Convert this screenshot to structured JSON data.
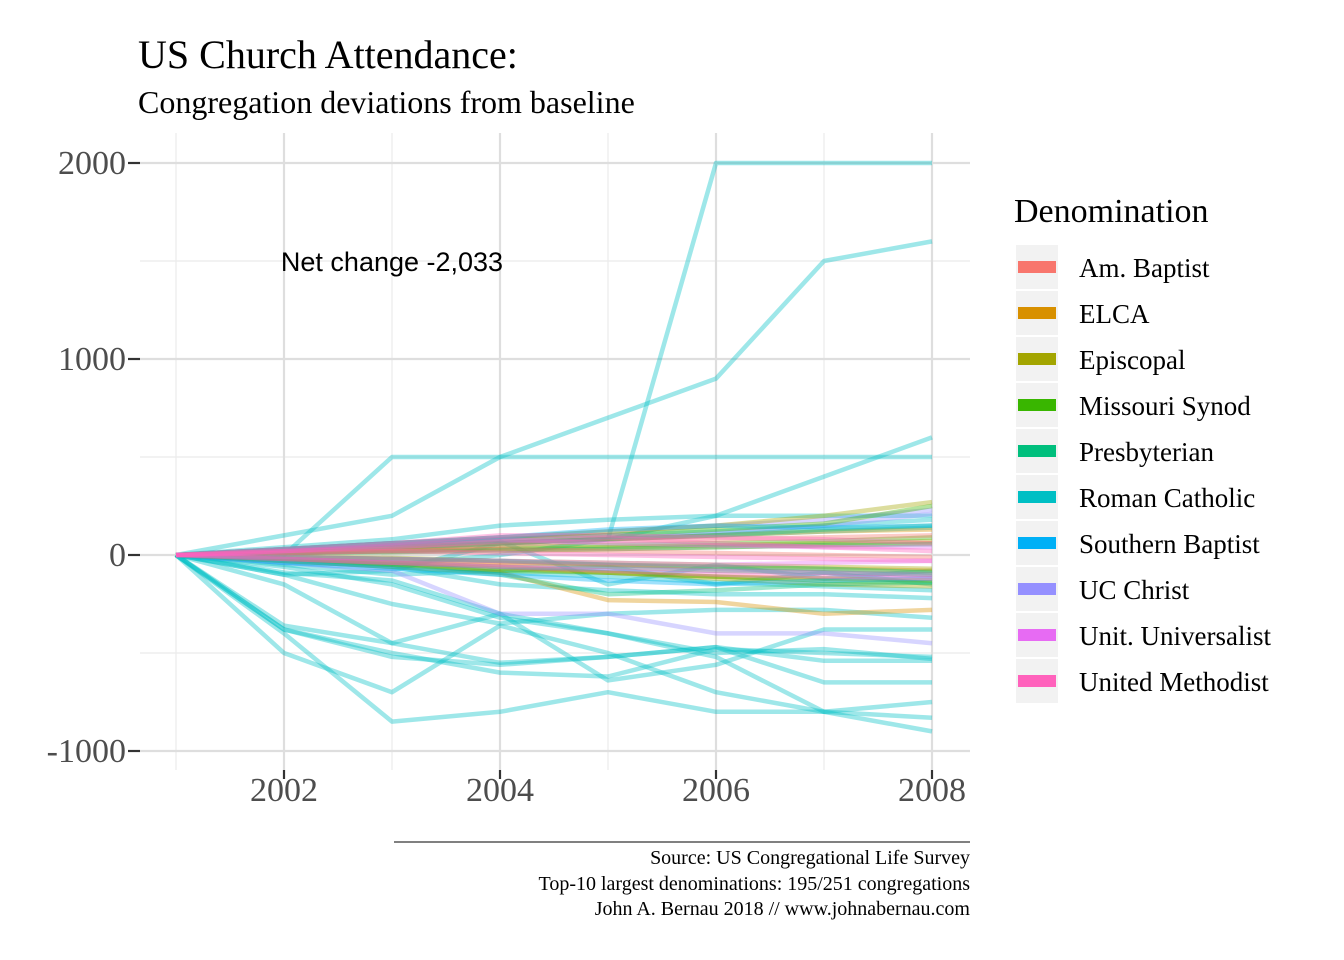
{
  "chart_data": {
    "type": "line",
    "title": "US Church Attendance:",
    "subtitle": "Congregation deviations from baseline",
    "xlabel": "",
    "ylabel": "",
    "x_ticks": [
      2002,
      2004,
      2006,
      2008
    ],
    "y_ticks": [
      2000,
      1000,
      0,
      -1000
    ],
    "y_tick_labels": [
      "2000",
      "1000",
      "0",
      "-1000"
    ],
    "x_tick_labels": [
      "2002",
      "2004",
      "2006",
      "2008"
    ],
    "xlim": [
      2001,
      2008
    ],
    "ylim": [
      -1000,
      2000
    ],
    "grid": true,
    "legend_position": "right",
    "legend_title": "Denomination",
    "denominations": [
      {
        "name": "Am. Baptist",
        "color": "#F8766D"
      },
      {
        "name": "ELCA",
        "color": "#D89000"
      },
      {
        "name": "Episcopal",
        "color": "#A3A500"
      },
      {
        "name": "Missouri Synod",
        "color": "#39B600"
      },
      {
        "name": "Presbyterian",
        "color": "#00BF7D"
      },
      {
        "name": "Roman Catholic",
        "color": "#00BFC4"
      },
      {
        "name": "Southern Baptist",
        "color": "#00B0F6"
      },
      {
        "name": "UC Christ",
        "color": "#9590FF"
      },
      {
        "name": "Unit. Universalist",
        "color": "#E76BF3"
      },
      {
        "name": "United Methodist",
        "color": "#FF62BC"
      }
    ],
    "x": [
      2001,
      2002,
      2003,
      2004,
      2005,
      2006,
      2007,
      2008
    ],
    "series": [
      {
        "denomination": "Roman Catholic",
        "values": [
          0,
          -100,
          -80,
          60,
          80,
          2000,
          2000,
          2000
        ]
      },
      {
        "denomination": "Roman Catholic",
        "values": [
          0,
          100,
          200,
          500,
          700,
          900,
          1500,
          1600
        ]
      },
      {
        "denomination": "Roman Catholic",
        "values": [
          0,
          0,
          500,
          500,
          500,
          500,
          500,
          500
        ]
      },
      {
        "denomination": "Roman Catholic",
        "values": [
          0,
          -40,
          -50,
          0,
          80,
          200,
          400,
          600
        ]
      },
      {
        "denomination": "Roman Catholic",
        "values": [
          0,
          40,
          80,
          150,
          180,
          200,
          200,
          200
        ]
      },
      {
        "denomination": "Roman Catholic",
        "values": [
          0,
          -380,
          -520,
          -560,
          -520,
          -470,
          -650,
          -650
        ]
      },
      {
        "denomination": "Roman Catholic",
        "values": [
          0,
          -400,
          -850,
          -800,
          -700,
          -800,
          -800,
          -750
        ]
      },
      {
        "denomination": "Roman Catholic",
        "values": [
          0,
          -500,
          -700,
          -360,
          -500,
          -700,
          -800,
          -900
        ]
      },
      {
        "denomination": "Roman Catholic",
        "values": [
          0,
          -360,
          -450,
          -550,
          -520,
          -470,
          -540,
          -540
        ]
      },
      {
        "denomination": "Roman Catholic",
        "values": [
          0,
          -150,
          -450,
          -300,
          -400,
          -500,
          -480,
          -530
        ]
      },
      {
        "denomination": "Roman Catholic",
        "values": [
          0,
          -90,
          -130,
          -300,
          -640,
          -560,
          -380,
          -380
        ]
      },
      {
        "denomination": "Roman Catholic",
        "values": [
          0,
          -380,
          -500,
          -600,
          -620,
          -480,
          -500,
          -520
        ]
      },
      {
        "denomination": "Roman Catholic",
        "values": [
          0,
          -100,
          -250,
          -350,
          -300,
          -280,
          -280,
          -320
        ]
      },
      {
        "denomination": "Roman Catholic",
        "values": [
          0,
          -60,
          -150,
          -320,
          -400,
          -520,
          -800,
          -830
        ]
      },
      {
        "denomination": "Roman Catholic",
        "values": [
          0,
          -30,
          -60,
          -150,
          -180,
          -200,
          -200,
          -220
        ]
      },
      {
        "denomination": "Roman Catholic",
        "values": [
          0,
          -50,
          -100,
          -80,
          -60,
          -150,
          -90,
          -150
        ]
      },
      {
        "denomination": "Roman Catholic",
        "values": [
          0,
          20,
          40,
          70,
          -150,
          -50,
          -120,
          -80
        ]
      },
      {
        "denomination": "Roman Catholic",
        "values": [
          0,
          10,
          30,
          60,
          80,
          100,
          120,
          140
        ]
      },
      {
        "denomination": "Roman Catholic",
        "values": [
          0,
          -20,
          -40,
          -90,
          -110,
          -140,
          -160,
          -180
        ]
      },
      {
        "denomination": "Roman Catholic",
        "values": [
          0,
          30,
          60,
          80,
          100,
          120,
          150,
          180
        ]
      },
      {
        "denomination": "UC Christ",
        "values": [
          0,
          -40,
          -80,
          -300,
          -300,
          -400,
          -400,
          -450
        ]
      },
      {
        "denomination": "UC Christ",
        "values": [
          0,
          30,
          60,
          90,
          120,
          150,
          180,
          230
        ]
      },
      {
        "denomination": "UC Christ",
        "values": [
          0,
          20,
          40,
          60,
          80,
          110,
          150,
          210
        ]
      },
      {
        "denomination": "UC Christ",
        "values": [
          0,
          -10,
          -20,
          -30,
          -50,
          -70,
          -90,
          -110
        ]
      },
      {
        "denomination": "ELCA",
        "values": [
          0,
          -30,
          -60,
          -90,
          -230,
          -240,
          -300,
          -280
        ]
      },
      {
        "denomination": "ELCA",
        "values": [
          0,
          20,
          40,
          60,
          80,
          100,
          120,
          130
        ]
      },
      {
        "denomination": "ELCA",
        "values": [
          0,
          -20,
          -40,
          -60,
          -90,
          -110,
          -120,
          -130
        ]
      },
      {
        "denomination": "ELCA",
        "values": [
          0,
          10,
          15,
          20,
          30,
          40,
          50,
          60
        ]
      },
      {
        "denomination": "ELCA",
        "values": [
          0,
          -10,
          -20,
          -40,
          -50,
          -60,
          -70,
          -80
        ]
      },
      {
        "denomination": "Episcopal",
        "values": [
          0,
          30,
          60,
          90,
          120,
          150,
          200,
          270
        ]
      },
      {
        "denomination": "Episcopal",
        "values": [
          0,
          -20,
          -40,
          -70,
          -90,
          -120,
          -150,
          -160
        ]
      },
      {
        "denomination": "Episcopal",
        "values": [
          0,
          10,
          20,
          30,
          40,
          50,
          60,
          70
        ]
      },
      {
        "denomination": "Episcopal",
        "values": [
          0,
          -10,
          -15,
          -30,
          -40,
          -50,
          -60,
          -70
        ]
      },
      {
        "denomination": "Missouri Synod",
        "values": [
          0,
          20,
          50,
          80,
          100,
          130,
          160,
          250
        ]
      },
      {
        "denomination": "Missouri Synod",
        "values": [
          0,
          -20,
          -50,
          -80,
          -90,
          -110,
          -130,
          -140
        ]
      },
      {
        "denomination": "Missouri Synod",
        "values": [
          0,
          10,
          20,
          40,
          50,
          60,
          70,
          90
        ]
      },
      {
        "denomination": "Presbyterian",
        "values": [
          0,
          -30,
          -60,
          -100,
          -200,
          -180,
          -150,
          -140
        ]
      },
      {
        "denomination": "Presbyterian",
        "values": [
          0,
          20,
          40,
          60,
          80,
          100,
          130,
          150
        ]
      },
      {
        "denomination": "Presbyterian",
        "values": [
          0,
          -10,
          -20,
          -30,
          -50,
          -60,
          -70,
          -90
        ]
      },
      {
        "denomination": "Presbyterian",
        "values": [
          0,
          10,
          15,
          25,
          30,
          40,
          50,
          55
        ]
      },
      {
        "denomination": "Southern Baptist",
        "values": [
          0,
          -40,
          -70,
          -100,
          -130,
          -150,
          -130,
          -120
        ]
      },
      {
        "denomination": "Southern Baptist",
        "values": [
          0,
          30,
          60,
          90,
          130,
          150,
          140,
          150
        ]
      },
      {
        "denomination": "Southern Baptist",
        "values": [
          0,
          -20,
          -40,
          -60,
          -70,
          -80,
          -90,
          -100
        ]
      },
      {
        "denomination": "Am. Baptist",
        "values": [
          0,
          20,
          30,
          50,
          70,
          80,
          90,
          100
        ]
      },
      {
        "denomination": "Am. Baptist",
        "values": [
          0,
          -20,
          -40,
          -50,
          -60,
          -80,
          -90,
          -100
        ]
      },
      {
        "denomination": "Am. Baptist",
        "values": [
          0,
          10,
          20,
          30,
          20,
          10,
          0,
          -10
        ]
      },
      {
        "denomination": "Unit. Universalist",
        "values": [
          0,
          20,
          50,
          80,
          60,
          50,
          40,
          40
        ]
      },
      {
        "denomination": "Unit. Universalist",
        "values": [
          0,
          -10,
          -20,
          -30,
          -40,
          -50,
          -40,
          -30
        ]
      },
      {
        "denomination": "United Methodist",
        "values": [
          0,
          30,
          60,
          100,
          100,
          90,
          80,
          60
        ]
      },
      {
        "denomination": "United Methodist",
        "values": [
          0,
          20,
          40,
          70,
          90,
          60,
          40,
          20
        ]
      },
      {
        "denomination": "United Methodist",
        "values": [
          0,
          -20,
          -40,
          -60,
          -80,
          -100,
          -110,
          -120
        ]
      },
      {
        "denomination": "United Methodist",
        "values": [
          0,
          10,
          20,
          10,
          0,
          -10,
          -20,
          -30
        ]
      }
    ],
    "annotations": [
      {
        "text": "Net change -2,033",
        "x": 2003,
        "y": 1500
      }
    ],
    "caption": [
      "Source: US Congregational Life Survey",
      "Top-10 largest denominations: 195/251 congregations",
      "John A. Bernau 2018 // www.johnabernau.com"
    ]
  }
}
